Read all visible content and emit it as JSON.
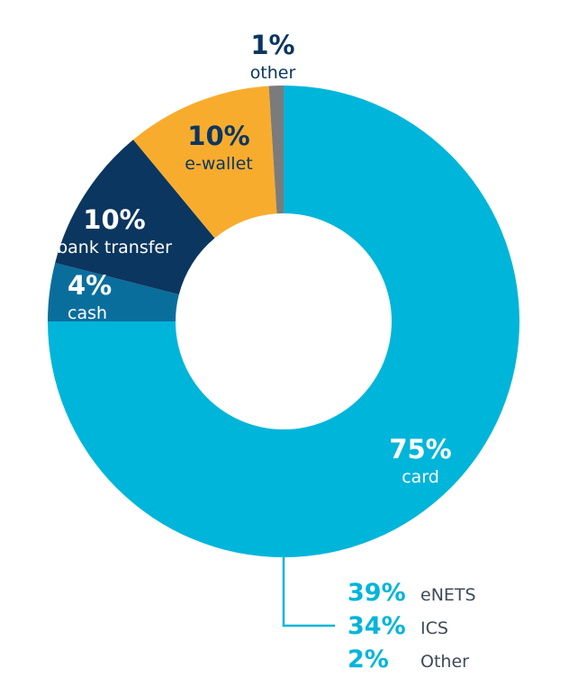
{
  "chart_data": {
    "type": "pie",
    "variant": "donut",
    "slices": [
      {
        "label": "card",
        "value": 75,
        "pct_text": "75%",
        "color": "#00b5da"
      },
      {
        "label": "cash",
        "value": 4,
        "pct_text": "4%",
        "color": "#0a6e9d"
      },
      {
        "label": "bank transfer",
        "value": 10,
        "pct_text": "10%",
        "color": "#0b3660"
      },
      {
        "label": "e-wallet",
        "value": 10,
        "pct_text": "10%",
        "color": "#f8ac2e"
      },
      {
        "label": "other",
        "value": 1,
        "pct_text": "1%",
        "color": "#7b7b7b"
      }
    ],
    "breakdown": {
      "parent": "card",
      "items": [
        {
          "pct_text": "39%",
          "label": "eNETS"
        },
        {
          "pct_text": "34%",
          "label": "ICS"
        },
        {
          "pct_text": "2%",
          "label": "Other"
        }
      ]
    },
    "colors": {
      "breakdown_pct": "#00b5da",
      "breakdown_label": "#3f4a55",
      "leader_line": "#00b5da",
      "dark_text": "#0b3660",
      "light_text": "#ffffff"
    }
  }
}
